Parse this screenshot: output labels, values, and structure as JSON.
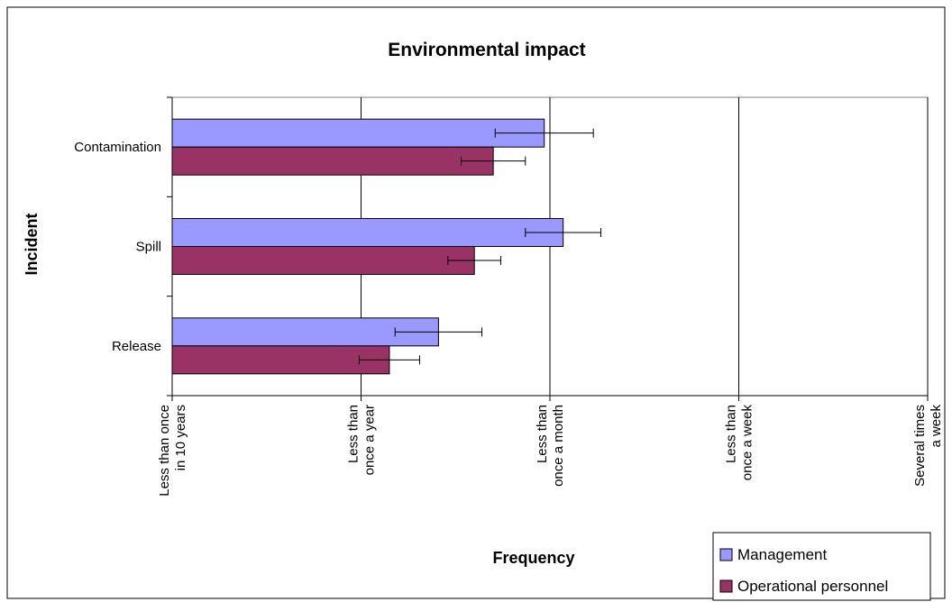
{
  "chart_data": {
    "type": "bar",
    "orientation": "horizontal",
    "title": "Environmental impact",
    "xlabel": "Frequency",
    "ylabel": "Incident",
    "categories": [
      "Contamination",
      "Spill",
      "Release"
    ],
    "x_ticks": [
      [
        "Less than once",
        "in 10 years"
      ],
      [
        "Less than",
        "once a year"
      ],
      [
        "Less than",
        "once a month"
      ],
      [
        "Less than",
        "once a week"
      ],
      [
        "Several times",
        "a week"
      ]
    ],
    "xlim": [
      1,
      5
    ],
    "grid": "vertical",
    "legend_position": "bottom-right",
    "series": [
      {
        "name": "Management",
        "color": "#9999ff",
        "values": [
          2.97,
          3.07,
          2.41
        ],
        "error": [
          0.26,
          0.2,
          0.23
        ]
      },
      {
        "name": "Operational personnel",
        "color": "#993366",
        "values": [
          2.7,
          2.6,
          2.15
        ],
        "error": [
          0.17,
          0.14,
          0.16
        ]
      }
    ]
  }
}
